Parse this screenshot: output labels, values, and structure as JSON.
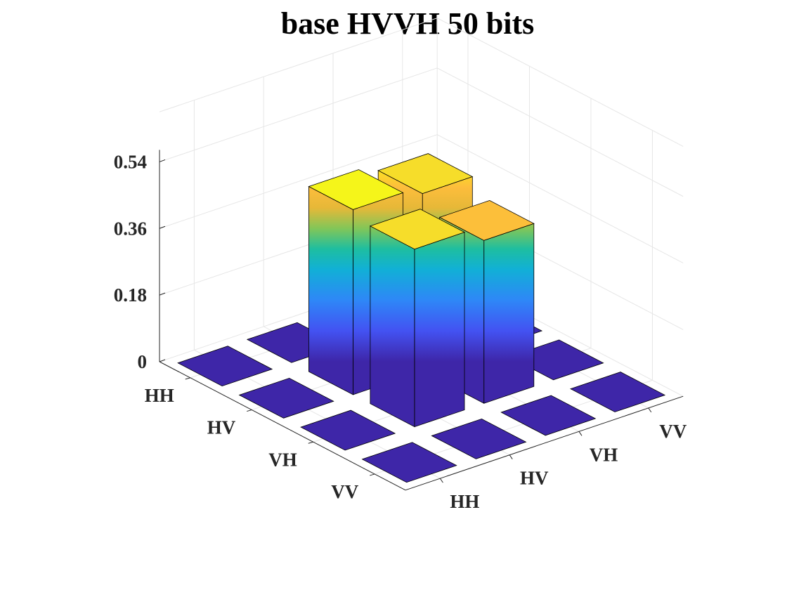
{
  "chart_data": {
    "type": "bar3",
    "title": "base HVVH 50 bits",
    "row_categories": [
      "HH",
      "HV",
      "VH",
      "VV"
    ],
    "col_categories": [
      "HH",
      "HV",
      "VH",
      "VV"
    ],
    "values": [
      [
        0,
        0,
        0,
        0
      ],
      [
        0,
        0.5,
        0.48,
        0
      ],
      [
        0,
        0.48,
        0.44,
        0
      ],
      [
        0,
        0,
        0,
        0
      ]
    ],
    "zlim": [
      0,
      0.54
    ],
    "zticks": [
      "0",
      "0.18",
      "0.36",
      "0.54"
    ],
    "colormap": "parula",
    "grid": true
  }
}
